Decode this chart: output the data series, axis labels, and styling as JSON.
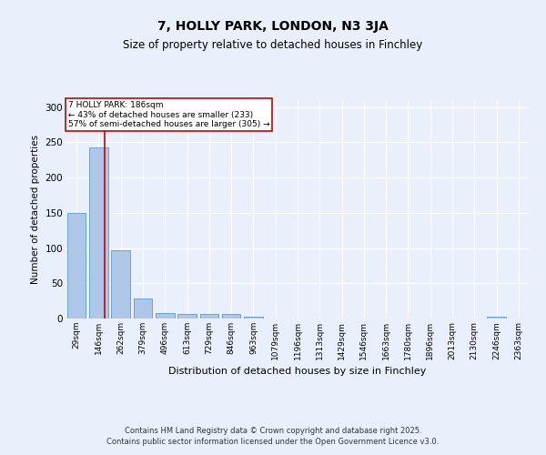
{
  "title": "7, HOLLY PARK, LONDON, N3 3JA",
  "subtitle": "Size of property relative to detached houses in Finchley",
  "xlabel": "Distribution of detached houses by size in Finchley",
  "ylabel": "Number of detached properties",
  "categories": [
    "29sqm",
    "146sqm",
    "262sqm",
    "379sqm",
    "496sqm",
    "613sqm",
    "729sqm",
    "846sqm",
    "963sqm",
    "1079sqm",
    "1196sqm",
    "1313sqm",
    "1429sqm",
    "1546sqm",
    "1663sqm",
    "1780sqm",
    "1896sqm",
    "2013sqm",
    "2130sqm",
    "2246sqm",
    "2363sqm"
  ],
  "values": [
    150,
    243,
    97,
    29,
    8,
    6,
    7,
    7,
    2,
    0,
    0,
    0,
    0,
    0,
    0,
    0,
    0,
    0,
    0,
    3,
    0
  ],
  "bar_color": "#aec6e8",
  "bar_edge_color": "#5b9bd5",
  "background_color": "#eaf0fb",
  "grid_color": "#ffffff",
  "vline_color": "#cc0000",
  "vline_x": 1.27,
  "annotation_text": "7 HOLLY PARK: 186sqm\n← 43% of detached houses are smaller (233)\n57% of semi-detached houses are larger (305) →",
  "annotation_box_color": "#cc0000",
  "ylim": [
    0,
    310
  ],
  "yticks": [
    0,
    50,
    100,
    150,
    200,
    250,
    300
  ],
  "footer_line1": "Contains HM Land Registry data © Crown copyright and database right 2025.",
  "footer_line2": "Contains public sector information licensed under the Open Government Licence v3.0."
}
